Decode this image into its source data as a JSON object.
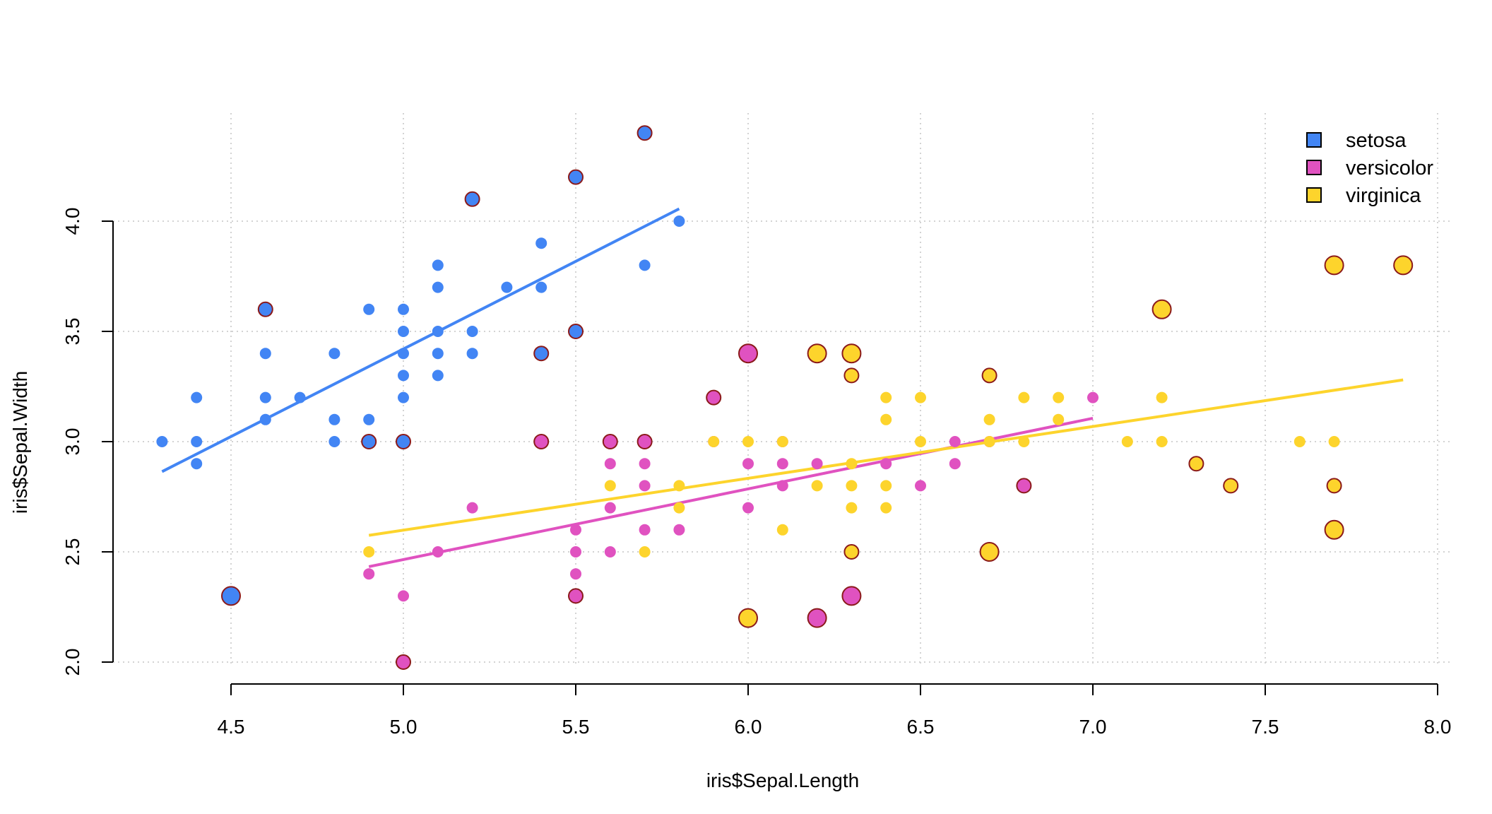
{
  "chart_data": {
    "type": "scatter",
    "title": "",
    "xlabel": "iris$Sepal.Length",
    "ylabel": "iris$Sepal.Width",
    "xlim": [
      4.17,
      8.04
    ],
    "ylim": [
      1.88,
      4.44
    ],
    "xticks": [
      "4.5",
      "5.0",
      "5.5",
      "6.0",
      "6.5",
      "7.0",
      "7.5",
      "8.0"
    ],
    "yticks": [
      "2.0",
      "2.5",
      "3.0",
      "3.5",
      "4.0"
    ],
    "grid": true,
    "legend_position": "top-right",
    "legend": [
      {
        "label": "setosa",
        "color": "#4285f4"
      },
      {
        "label": "versicolor",
        "color": "#e052c0"
      },
      {
        "label": "virginica",
        "color": "#fdd42c"
      }
    ],
    "series": [
      {
        "name": "setosa",
        "color": "#4285f4",
        "points": [
          [
            4.3,
            3.0
          ],
          [
            4.4,
            3.0
          ],
          [
            4.4,
            2.9
          ],
          [
            4.4,
            3.2
          ],
          [
            4.5,
            2.3
          ],
          [
            4.6,
            3.6
          ],
          [
            4.6,
            3.4
          ],
          [
            4.6,
            3.2
          ],
          [
            4.6,
            3.1
          ],
          [
            4.7,
            3.2
          ],
          [
            4.8,
            3.4
          ],
          [
            4.8,
            3.1
          ],
          [
            4.8,
            3.0
          ],
          [
            4.9,
            3.6
          ],
          [
            4.9,
            3.1
          ],
          [
            4.9,
            3.0
          ],
          [
            5.0,
            3.6
          ],
          [
            5.0,
            3.5
          ],
          [
            5.0,
            3.4
          ],
          [
            5.0,
            3.3
          ],
          [
            5.0,
            3.2
          ],
          [
            5.0,
            3.0
          ],
          [
            5.1,
            3.8
          ],
          [
            5.1,
            3.7
          ],
          [
            5.1,
            3.5
          ],
          [
            5.1,
            3.4
          ],
          [
            5.1,
            3.3
          ],
          [
            5.2,
            4.1
          ],
          [
            5.2,
            3.5
          ],
          [
            5.2,
            3.4
          ],
          [
            5.3,
            3.7
          ],
          [
            5.4,
            3.9
          ],
          [
            5.4,
            3.7
          ],
          [
            5.4,
            3.4
          ],
          [
            5.5,
            4.2
          ],
          [
            5.5,
            3.5
          ],
          [
            5.7,
            4.4
          ],
          [
            5.7,
            3.8
          ],
          [
            5.8,
            4.0
          ]
        ],
        "outlined": [
          [
            4.5,
            2.3
          ],
          [
            4.6,
            3.6
          ],
          [
            5.2,
            4.1
          ],
          [
            5.7,
            4.4
          ],
          [
            5.5,
            4.2
          ],
          [
            5.0,
            3.0
          ],
          [
            4.9,
            3.0
          ],
          [
            5.4,
            3.4
          ],
          [
            5.5,
            3.5
          ]
        ],
        "large": [
          [
            4.5,
            2.3
          ]
        ],
        "fit_line": [
          [
            4.3,
            2.864
          ],
          [
            5.8,
            4.056
          ]
        ]
      },
      {
        "name": "versicolor",
        "color": "#e052c0",
        "points": [
          [
            4.9,
            2.4
          ],
          [
            5.0,
            2.3
          ],
          [
            5.0,
            2.0
          ],
          [
            5.1,
            2.5
          ],
          [
            5.2,
            2.7
          ],
          [
            5.4,
            3.0
          ],
          [
            5.5,
            2.6
          ],
          [
            5.5,
            2.5
          ],
          [
            5.5,
            2.4
          ],
          [
            5.5,
            2.3
          ],
          [
            5.6,
            3.0
          ],
          [
            5.6,
            2.9
          ],
          [
            5.6,
            2.7
          ],
          [
            5.6,
            2.5
          ],
          [
            5.7,
            3.0
          ],
          [
            5.7,
            2.9
          ],
          [
            5.7,
            2.8
          ],
          [
            5.7,
            2.6
          ],
          [
            5.8,
            2.6
          ],
          [
            5.9,
            3.2
          ],
          [
            5.9,
            3.0
          ],
          [
            6.0,
            3.4
          ],
          [
            6.0,
            2.9
          ],
          [
            6.0,
            2.7
          ],
          [
            6.1,
            3.0
          ],
          [
            6.1,
            2.9
          ],
          [
            6.1,
            2.8
          ],
          [
            6.2,
            2.9
          ],
          [
            6.2,
            2.2
          ],
          [
            6.3,
            2.3
          ],
          [
            6.4,
            2.9
          ],
          [
            6.5,
            2.8
          ],
          [
            6.6,
            3.0
          ],
          [
            6.6,
            2.9
          ],
          [
            6.7,
            3.0
          ],
          [
            6.8,
            2.8
          ],
          [
            7.0,
            3.2
          ]
        ],
        "outlined": [
          [
            5.0,
            2.0
          ],
          [
            5.9,
            3.2
          ],
          [
            5.4,
            3.0
          ],
          [
            5.5,
            2.3
          ],
          [
            5.6,
            3.0
          ],
          [
            5.7,
            3.0
          ],
          [
            6.8,
            2.8
          ]
        ],
        "large": [
          [
            6.0,
            3.4
          ],
          [
            6.2,
            2.2
          ],
          [
            6.3,
            2.3
          ]
        ],
        "fit_line": [
          [
            4.9,
            2.433
          ],
          [
            7.0,
            3.106
          ]
        ]
      },
      {
        "name": "virginica",
        "color": "#fdd42c",
        "points": [
          [
            4.9,
            2.5
          ],
          [
            5.6,
            2.8
          ],
          [
            5.7,
            2.5
          ],
          [
            5.8,
            2.8
          ],
          [
            5.8,
            2.7
          ],
          [
            5.9,
            3.0
          ],
          [
            6.0,
            3.0
          ],
          [
            6.0,
            2.2
          ],
          [
            6.1,
            3.0
          ],
          [
            6.1,
            2.6
          ],
          [
            6.2,
            3.4
          ],
          [
            6.2,
            2.8
          ],
          [
            6.3,
            3.4
          ],
          [
            6.3,
            3.3
          ],
          [
            6.3,
            2.9
          ],
          [
            6.3,
            2.8
          ],
          [
            6.3,
            2.7
          ],
          [
            6.3,
            2.5
          ],
          [
            6.4,
            3.2
          ],
          [
            6.4,
            3.1
          ],
          [
            6.4,
            2.8
          ],
          [
            6.4,
            2.7
          ],
          [
            6.5,
            3.2
          ],
          [
            6.5,
            3.0
          ],
          [
            6.7,
            3.3
          ],
          [
            6.7,
            3.1
          ],
          [
            6.7,
            3.0
          ],
          [
            6.7,
            2.5
          ],
          [
            6.8,
            3.2
          ],
          [
            6.8,
            3.0
          ],
          [
            6.9,
            3.2
          ],
          [
            6.9,
            3.1
          ],
          [
            7.1,
            3.0
          ],
          [
            7.2,
            3.6
          ],
          [
            7.2,
            3.2
          ],
          [
            7.2,
            3.0
          ],
          [
            7.3,
            2.9
          ],
          [
            7.4,
            2.8
          ],
          [
            7.6,
            3.0
          ],
          [
            7.7,
            3.8
          ],
          [
            7.7,
            3.0
          ],
          [
            7.7,
            2.8
          ],
          [
            7.7,
            2.6
          ],
          [
            7.9,
            3.8
          ]
        ],
        "outlined": [
          [
            6.3,
            3.3
          ],
          [
            6.7,
            3.3
          ],
          [
            6.3,
            2.5
          ],
          [
            7.3,
            2.9
          ],
          [
            7.4,
            2.8
          ],
          [
            7.7,
            2.8
          ]
        ],
        "large": [
          [
            6.0,
            2.2
          ],
          [
            6.2,
            3.4
          ],
          [
            6.3,
            3.4
          ],
          [
            6.7,
            2.5
          ],
          [
            7.2,
            3.6
          ],
          [
            7.7,
            3.8
          ],
          [
            7.9,
            3.8
          ],
          [
            7.7,
            2.6
          ]
        ],
        "fit_line": [
          [
            4.9,
            2.575
          ],
          [
            7.9,
            3.28
          ]
        ]
      }
    ]
  }
}
